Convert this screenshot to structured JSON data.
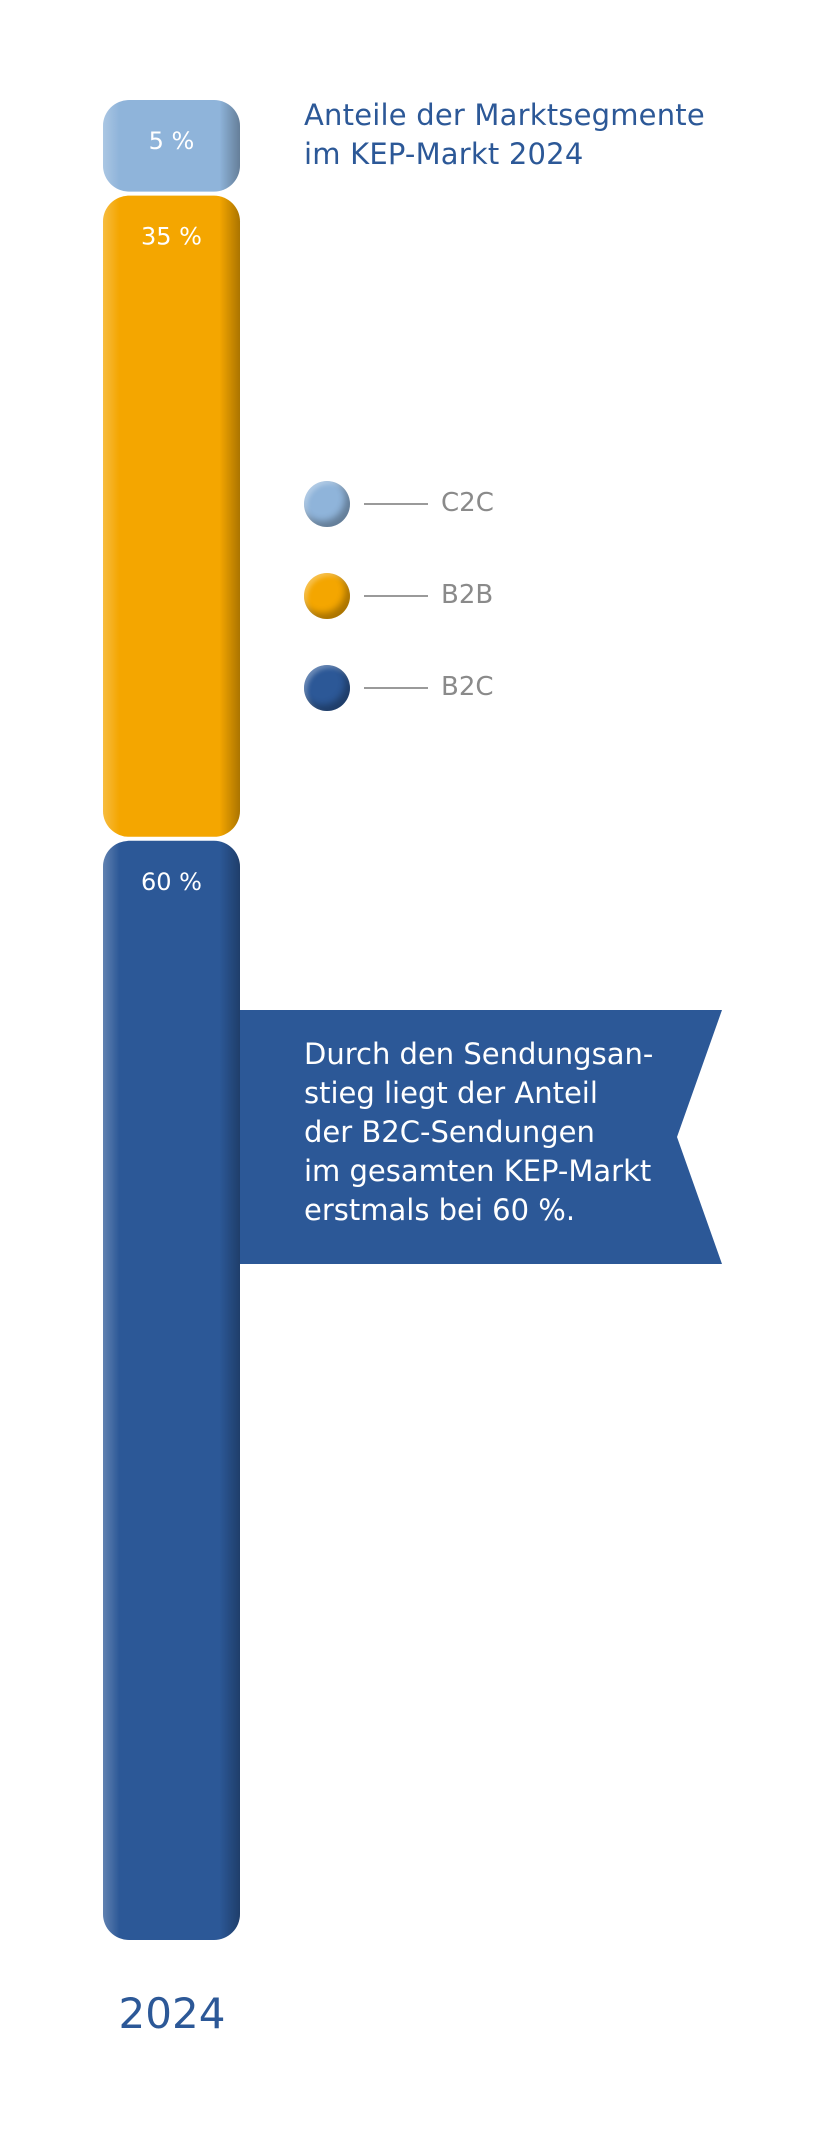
{
  "title_lines": [
    "Anteile der Marktsegmente",
    "im KEP-Markt 2024"
  ],
  "chart_data": {
    "type": "bar",
    "stacked": true,
    "categories": [
      "2024"
    ],
    "series": [
      {
        "name": "C2C",
        "values": [
          5
        ],
        "label": "5 %",
        "color": "#8fb4da"
      },
      {
        "name": "B2B",
        "values": [
          35
        ],
        "label": "35 %",
        "color": "#f4a600"
      },
      {
        "name": "B2C",
        "values": [
          60
        ],
        "label": "60 %",
        "color": "#2c5897"
      }
    ],
    "unit": "%",
    "legend_position": "right"
  },
  "legend": [
    {
      "label": "C2C",
      "color": "#8fb4da"
    },
    {
      "label": "B2B",
      "color": "#f4a600"
    },
    {
      "label": "B2C",
      "color": "#2c5897"
    }
  ],
  "callout": {
    "lines": [
      "Durch den Sendungsan-",
      "stieg liegt der Anteil",
      "der B2C-Sendungen",
      "im gesamten KEP-Markt",
      "erstmals bei 60 %."
    ],
    "color": "#2c5897"
  },
  "year_label": "2024"
}
